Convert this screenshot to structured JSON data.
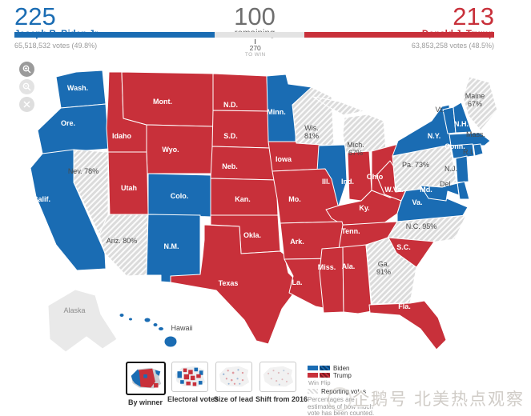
{
  "header": {
    "biden": {
      "electoral": "225",
      "name": "Joseph R. Biden Jr.",
      "votes": "65,518,532 votes (49.8%)"
    },
    "remaining": {
      "electoral": "100",
      "label": "remaining"
    },
    "needle": {
      "value": "270",
      "label": "TO WIN"
    },
    "trump": {
      "electoral": "213",
      "name": "Donald J. Trump",
      "votes": "63,853,258 votes (48.5%)"
    }
  },
  "bar": {
    "biden_pct": 41.8,
    "remaining_pct": 18.6,
    "trump_pct": 39.6,
    "needle_pct": 50.2
  },
  "colors": {
    "biden": "#1a6cb3",
    "trump": "#c8303a",
    "undecided_base": "#dbdbdb",
    "unreported": "#e9e9e9",
    "state_border": "#ffffff"
  },
  "zoom_controls": [
    {
      "id": "zoom-in"
    },
    {
      "id": "zoom-out"
    },
    {
      "id": "zoom-close"
    }
  ],
  "map": {
    "states": [
      {
        "id": "wash",
        "label_lines": [
          "Wash."
        ],
        "party": "biden"
      },
      {
        "id": "ore",
        "label_lines": [
          "Ore."
        ],
        "party": "biden"
      },
      {
        "id": "calif",
        "label_lines": [
          "Calif."
        ],
        "party": "biden"
      },
      {
        "id": "nev",
        "label_lines": [
          "Nev. 78%"
        ],
        "party": "undecided"
      },
      {
        "id": "idaho",
        "label_lines": [
          "Idaho"
        ],
        "party": "trump"
      },
      {
        "id": "mont",
        "label_lines": [
          "Mont."
        ],
        "party": "trump"
      },
      {
        "id": "wyo",
        "label_lines": [
          "Wyo."
        ],
        "party": "trump"
      },
      {
        "id": "utah",
        "label_lines": [
          "Utah"
        ],
        "party": "trump"
      },
      {
        "id": "colo",
        "label_lines": [
          "Colo."
        ],
        "party": "biden"
      },
      {
        "id": "ariz",
        "label_lines": [
          "Ariz. 80%"
        ],
        "party": "undecided"
      },
      {
        "id": "nm",
        "label_lines": [
          "N.M."
        ],
        "party": "biden"
      },
      {
        "id": "nd",
        "label_lines": [
          "N.D."
        ],
        "party": "trump"
      },
      {
        "id": "sd",
        "label_lines": [
          "S.D."
        ],
        "party": "trump"
      },
      {
        "id": "neb",
        "label_lines": [
          "Neb."
        ],
        "party": "trump"
      },
      {
        "id": "kan",
        "label_lines": [
          "Kan."
        ],
        "party": "trump"
      },
      {
        "id": "okla",
        "label_lines": [
          "Okla."
        ],
        "party": "trump"
      },
      {
        "id": "texas",
        "label_lines": [
          "Texas"
        ],
        "party": "trump"
      },
      {
        "id": "minn",
        "label_lines": [
          "Minn."
        ],
        "party": "biden"
      },
      {
        "id": "iowa",
        "label_lines": [
          "Iowa"
        ],
        "party": "trump"
      },
      {
        "id": "wis",
        "label_lines": [
          "Wis.",
          "81%"
        ],
        "party": "undecided"
      },
      {
        "id": "ill",
        "label_lines": [
          "Ill."
        ],
        "party": "biden"
      },
      {
        "id": "mo",
        "label_lines": [
          "Mo."
        ],
        "party": "trump"
      },
      {
        "id": "mich",
        "label_lines": [
          "Mich.",
          "67%"
        ],
        "party": "undecided"
      },
      {
        "id": "ind",
        "label_lines": [
          "Ind."
        ],
        "party": "trump"
      },
      {
        "id": "ohio",
        "label_lines": [
          "Ohio"
        ],
        "party": "trump"
      },
      {
        "id": "ky",
        "label_lines": [
          "Ky."
        ],
        "party": "trump"
      },
      {
        "id": "wva",
        "label_lines": [
          "W.Va."
        ],
        "party": "trump"
      },
      {
        "id": "va",
        "label_lines": [
          "Va."
        ],
        "party": "biden"
      },
      {
        "id": "nc",
        "label_lines": [
          "N.C. 95%"
        ],
        "party": "undecided"
      },
      {
        "id": "tenn",
        "label_lines": [
          "Tenn."
        ],
        "party": "trump"
      },
      {
        "id": "ark",
        "label_lines": [
          "Ark."
        ],
        "party": "trump"
      },
      {
        "id": "la",
        "label_lines": [
          "La."
        ],
        "party": "trump"
      },
      {
        "id": "miss",
        "label_lines": [
          "Miss."
        ],
        "party": "trump"
      },
      {
        "id": "ala",
        "label_lines": [
          "Ala."
        ],
        "party": "trump"
      },
      {
        "id": "ga",
        "label_lines": [
          "Ga.",
          "91%"
        ],
        "party": "undecided"
      },
      {
        "id": "sc",
        "label_lines": [
          "S.C."
        ],
        "party": "trump"
      },
      {
        "id": "fla",
        "label_lines": [
          "Fla."
        ],
        "party": "trump"
      },
      {
        "id": "pa",
        "label_lines": [
          "Pa. 73%"
        ],
        "party": "undecided"
      },
      {
        "id": "ny",
        "label_lines": [
          "N.Y."
        ],
        "party": "biden"
      },
      {
        "id": "vt",
        "label_lines": [
          "Vt."
        ],
        "party": "biden"
      },
      {
        "id": "nh",
        "label_lines": [
          "N.H."
        ],
        "party": "biden"
      },
      {
        "id": "maine",
        "label_lines": [
          "Maine",
          "67%"
        ],
        "party": "undecided"
      },
      {
        "id": "mass",
        "label_lines": [
          "Mass."
        ],
        "party": "biden"
      },
      {
        "id": "conn",
        "label_lines": [
          "Conn."
        ],
        "party": "biden"
      },
      {
        "id": "ri",
        "label_lines": [
          "R.I."
        ],
        "party": "biden"
      },
      {
        "id": "nj",
        "label_lines": [
          "N.J."
        ],
        "party": "biden"
      },
      {
        "id": "del",
        "label_lines": [
          "Del."
        ],
        "party": "biden"
      },
      {
        "id": "md",
        "label_lines": [
          "Md."
        ],
        "party": "biden"
      },
      {
        "id": "alaska",
        "label_lines": [
          "Alaska"
        ],
        "party": "none"
      },
      {
        "id": "hawaii",
        "label_lines": [
          "Hawaii"
        ],
        "party": "biden"
      }
    ]
  },
  "footer": {
    "views": [
      {
        "label": "By winner",
        "selected": true
      },
      {
        "label": "Electoral votes",
        "selected": false
      },
      {
        "label": "Size of lead",
        "selected": false
      },
      {
        "label": "Shift from 2016",
        "selected": false
      }
    ],
    "legend": {
      "biden": "Biden",
      "trump": "Trump",
      "win": "Win",
      "flip": "Flip",
      "reporting": "Reporting votes",
      "note_lines": [
        "Percentages are",
        "estimates of how much",
        "vote has been counted."
      ]
    }
  },
  "watermark": "企鹅号 北美热点观察"
}
